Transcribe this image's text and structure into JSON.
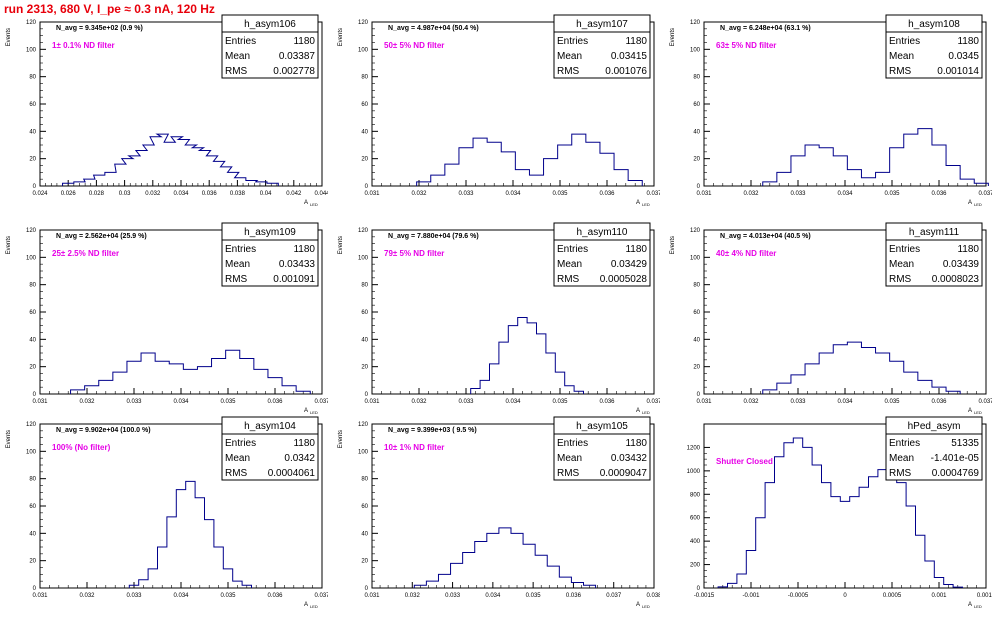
{
  "page": {
    "title": "run 2313,   680 V, I_pe ≈ 0.3 nA, 120 Hz"
  },
  "chart_data": [
    {
      "type": "bar",
      "hist_name": "h_asym106",
      "navg": "N_avg = 9.345e+02 (0.9 %)",
      "annotation": "1± 0.1% ND filter",
      "stats": {
        "entries": "1180",
        "mean": "0.03387",
        "rms": "0.002778"
      },
      "stat_labels": [
        "Entries",
        "Mean",
        "RMS"
      ],
      "ylabel": "Events",
      "xlabel": "A",
      "xlabel_sub": "LED",
      "xlim": [
        0.024,
        0.044
      ],
      "ylim": [
        0,
        120
      ],
      "xticks": [
        "0.024",
        "0.026",
        "0.028",
        "0.03",
        "0.032",
        "0.034",
        "0.036",
        "0.038",
        "0.04",
        "0.042",
        "0.044"
      ],
      "xtick_values": [
        0.024,
        0.026,
        0.028,
        0.03,
        0.032,
        0.034,
        0.036,
        0.038,
        0.04,
        0.042,
        0.044
      ],
      "yticks": [
        0,
        20,
        40,
        60,
        80,
        100,
        120
      ],
      "x": [
        0.026,
        0.0268,
        0.0275,
        0.0282,
        0.029,
        0.0297,
        0.0302,
        0.0307,
        0.0312,
        0.0317,
        0.0322,
        0.0327,
        0.0332,
        0.0337,
        0.0342,
        0.0347,
        0.0352,
        0.0357,
        0.0362,
        0.0367,
        0.0372,
        0.0377,
        0.0382,
        0.039,
        0.0397,
        0.0405
      ],
      "values": [
        2,
        3,
        5,
        8,
        10,
        16,
        20,
        22,
        26,
        30,
        36,
        38,
        32,
        36,
        34,
        30,
        28,
        26,
        22,
        18,
        14,
        10,
        6,
        4,
        3,
        2
      ]
    },
    {
      "type": "bar",
      "hist_name": "h_asym107",
      "navg": "N_avg = 4.987e+04 (50.4 %)",
      "annotation": "50± 5% ND filter",
      "stats": {
        "entries": "1180",
        "mean": "0.03415",
        "rms": "0.001076"
      },
      "stat_labels": [
        "Entries",
        "Mean",
        "RMS"
      ],
      "ylabel": "Events",
      "xlabel": "A",
      "xlabel_sub": "LED",
      "xlim": [
        0.031,
        0.037
      ],
      "ylim": [
        0,
        120
      ],
      "xticks": [
        "0.031",
        "0.032",
        "0.033",
        "0.034",
        "0.035",
        "0.036",
        "0.037"
      ],
      "xtick_values": [
        0.031,
        0.032,
        0.033,
        0.034,
        0.035,
        0.036,
        0.037
      ],
      "yticks": [
        0,
        20,
        40,
        60,
        80,
        100,
        120
      ],
      "x": [
        0.0321,
        0.0324,
        0.0327,
        0.033,
        0.0333,
        0.0336,
        0.0339,
        0.0342,
        0.0345,
        0.0348,
        0.0351,
        0.0354,
        0.0357,
        0.036,
        0.0363,
        0.0366
      ],
      "values": [
        3,
        8,
        16,
        28,
        35,
        32,
        25,
        12,
        8,
        20,
        30,
        38,
        32,
        24,
        12,
        4
      ]
    },
    {
      "type": "bar",
      "hist_name": "h_asym108",
      "navg": "N_avg = 6.248e+04 (63.1 %)",
      "annotation": "63± 5% ND filter",
      "stats": {
        "entries": "1180",
        "mean": "0.0345",
        "rms": "0.001014"
      },
      "stat_labels": [
        "Entries",
        "Mean",
        "RMS"
      ],
      "ylabel": "Events",
      "xlabel": "A",
      "xlabel_sub": "LED",
      "xlim": [
        0.031,
        0.037
      ],
      "ylim": [
        0,
        120
      ],
      "xticks": [
        "0.031",
        "0.032",
        "0.033",
        "0.034",
        "0.035",
        "0.036",
        "0.037"
      ],
      "xtick_values": [
        0.031,
        0.032,
        0.033,
        0.034,
        0.035,
        0.036,
        0.037
      ],
      "yticks": [
        0,
        20,
        40,
        60,
        80,
        100,
        120
      ],
      "x": [
        0.0324,
        0.0327,
        0.033,
        0.0333,
        0.0336,
        0.0339,
        0.0342,
        0.0345,
        0.0348,
        0.0351,
        0.0354,
        0.0357,
        0.036,
        0.0363,
        0.0366,
        0.0369
      ],
      "values": [
        3,
        10,
        22,
        30,
        28,
        22,
        12,
        6,
        10,
        28,
        38,
        42,
        30,
        15,
        5,
        2
      ]
    },
    {
      "type": "bar",
      "hist_name": "h_asym109",
      "navg": "N_avg = 2.562e+04 (25.9 %)",
      "annotation": "25± 2.5% ND filter",
      "stats": {
        "entries": "1180",
        "mean": "0.03433",
        "rms": "0.001091"
      },
      "stat_labels": [
        "Entries",
        "Mean",
        "RMS"
      ],
      "ylabel": "Events",
      "xlabel": "A",
      "xlabel_sub": "LED",
      "xlim": [
        0.031,
        0.037
      ],
      "ylim": [
        0,
        120
      ],
      "xticks": [
        "0.031",
        "0.032",
        "0.033",
        "0.034",
        "0.035",
        "0.036",
        "0.037"
      ],
      "xtick_values": [
        0.031,
        0.032,
        0.033,
        0.034,
        0.035,
        0.036,
        0.037
      ],
      "yticks": [
        0,
        20,
        40,
        60,
        80,
        100,
        120
      ],
      "x": [
        0.0318,
        0.0321,
        0.0324,
        0.0327,
        0.033,
        0.0333,
        0.0336,
        0.0339,
        0.0342,
        0.0345,
        0.0348,
        0.0351,
        0.0354,
        0.0357,
        0.036,
        0.0363,
        0.0366
      ],
      "values": [
        3,
        6,
        10,
        16,
        24,
        30,
        24,
        22,
        18,
        20,
        26,
        32,
        26,
        18,
        12,
        6,
        2
      ]
    },
    {
      "type": "bar",
      "hist_name": "h_asym110",
      "navg": "N_avg = 7.880e+04 (79.6 %)",
      "annotation": "79± 5% ND filter",
      "stats": {
        "entries": "1180",
        "mean": "0.03429",
        "rms": "0.0005028"
      },
      "stat_labels": [
        "Entries",
        "Mean",
        "RMS"
      ],
      "ylabel": "Events",
      "xlabel": "A",
      "xlabel_sub": "LED",
      "xlim": [
        0.031,
        0.037
      ],
      "ylim": [
        0,
        120
      ],
      "xticks": [
        "0.031",
        "0.032",
        "0.033",
        "0.034",
        "0.035",
        "0.036",
        "0.037"
      ],
      "xtick_values": [
        0.031,
        0.032,
        0.033,
        0.034,
        0.035,
        0.036,
        0.037
      ],
      "yticks": [
        0,
        20,
        40,
        60,
        80,
        100,
        120
      ],
      "x": [
        0.0332,
        0.0334,
        0.0336,
        0.0338,
        0.034,
        0.0342,
        0.0344,
        0.0346,
        0.0348,
        0.035,
        0.0352,
        0.0354
      ],
      "values": [
        4,
        10,
        22,
        38,
        50,
        56,
        52,
        44,
        30,
        16,
        6,
        2
      ]
    },
    {
      "type": "bar",
      "hist_name": "h_asym111",
      "navg": "N_avg = 4.013e+04 (40.5 %)",
      "annotation": "40± 4% ND filter",
      "stats": {
        "entries": "1180",
        "mean": "0.03439",
        "rms": "0.0008023"
      },
      "stat_labels": [
        "Entries",
        "Mean",
        "RMS"
      ],
      "ylabel": "Events",
      "xlabel": "A",
      "xlabel_sub": "LED",
      "xlim": [
        0.031,
        0.037
      ],
      "ylim": [
        0,
        120
      ],
      "xticks": [
        "0.031",
        "0.032",
        "0.033",
        "0.034",
        "0.035",
        "0.036",
        "0.037"
      ],
      "xtick_values": [
        0.031,
        0.032,
        0.033,
        0.034,
        0.035,
        0.036,
        0.037
      ],
      "yticks": [
        0,
        20,
        40,
        60,
        80,
        100,
        120
      ],
      "x": [
        0.0324,
        0.0327,
        0.033,
        0.0333,
        0.0336,
        0.0339,
        0.0342,
        0.0345,
        0.0348,
        0.0351,
        0.0354,
        0.0357,
        0.036,
        0.0363
      ],
      "values": [
        3,
        8,
        14,
        22,
        30,
        36,
        38,
        34,
        30,
        24,
        16,
        10,
        5,
        2
      ]
    },
    {
      "type": "bar",
      "hist_name": "h_asym104",
      "navg": "N_avg = 9.902e+04 (100.0 %)",
      "annotation": "100% (No filter)",
      "stats": {
        "entries": "1180",
        "mean": "0.0342",
        "rms": "0.0004061"
      },
      "stat_labels": [
        "Entries",
        "Mean",
        "RMS"
      ],
      "ylabel": "Events",
      "xlabel": "A",
      "xlabel_sub": "LED",
      "xlim": [
        0.031,
        0.037
      ],
      "ylim": [
        0,
        120
      ],
      "xticks": [
        "0.031",
        "0.032",
        "0.033",
        "0.034",
        "0.035",
        "0.036",
        "0.037"
      ],
      "xtick_values": [
        0.031,
        0.032,
        0.033,
        0.034,
        0.035,
        0.036,
        0.037
      ],
      "yticks": [
        0,
        20,
        40,
        60,
        80,
        100,
        120
      ],
      "x": [
        0.033,
        0.0332,
        0.0334,
        0.0336,
        0.0338,
        0.034,
        0.0342,
        0.0344,
        0.0346,
        0.0348,
        0.035,
        0.0352,
        0.0354
      ],
      "values": [
        2,
        6,
        14,
        30,
        52,
        72,
        78,
        66,
        50,
        30,
        14,
        5,
        2
      ]
    },
    {
      "type": "bar",
      "hist_name": "h_asym105",
      "navg": "N_avg = 9.399e+03 ( 9.5 %)",
      "annotation": "10± 1% ND filter",
      "stats": {
        "entries": "1180",
        "mean": "0.03432",
        "rms": "0.0009047"
      },
      "stat_labels": [
        "Entries",
        "Mean",
        "RMS"
      ],
      "ylabel": "Events",
      "xlabel": "A",
      "xlabel_sub": "LED",
      "xlim": [
        0.031,
        0.038
      ],
      "ylim": [
        0,
        120
      ],
      "xticks": [
        "0.031",
        "0.032",
        "0.033",
        "0.034",
        "0.035",
        "0.036",
        "0.037",
        "0.038"
      ],
      "xtick_values": [
        0.031,
        0.032,
        0.033,
        0.034,
        0.035,
        0.036,
        0.037,
        0.038
      ],
      "yticks": [
        0,
        20,
        40,
        60,
        80,
        100,
        120
      ],
      "x": [
        0.0322,
        0.0325,
        0.0328,
        0.0331,
        0.0334,
        0.0337,
        0.034,
        0.0343,
        0.0346,
        0.0349,
        0.0352,
        0.0355,
        0.0358,
        0.0361,
        0.0364
      ],
      "values": [
        2,
        5,
        10,
        18,
        26,
        34,
        40,
        44,
        40,
        32,
        24,
        16,
        8,
        4,
        2
      ]
    },
    {
      "type": "bar",
      "hist_name": "hPed_asym",
      "navg": "",
      "annotation": "Shutter Closed",
      "stats": {
        "entries": "51335",
        "mean": "-1.401e-05",
        "rms": "0.0004769"
      },
      "stat_labels": [
        "Entries",
        "Mean",
        "RMS"
      ],
      "ylabel": "",
      "xlabel": "A",
      "xlabel_sub": "LED",
      "xlim": [
        -0.0015,
        0.0015
      ],
      "ylim": [
        0,
        1400
      ],
      "xticks": [
        "-0.0015",
        "-0.001",
        "-0.0005",
        "0",
        "0.0005",
        "0.001",
        "0.0015"
      ],
      "xtick_values": [
        -0.0015,
        -0.001,
        -0.0005,
        0,
        0.0005,
        0.001,
        0.0015
      ],
      "yticks": [
        0,
        200,
        400,
        600,
        800,
        1000,
        1200
      ],
      "x": [
        -0.0013,
        -0.0012,
        -0.0011,
        -0.001,
        -0.0009,
        -0.0008,
        -0.0007,
        -0.0006,
        -0.0005,
        -0.0004,
        -0.0003,
        -0.0002,
        -0.0001,
        0.0,
        0.0001,
        0.0002,
        0.0003,
        0.0004,
        0.0005,
        0.0006,
        0.0007,
        0.0008,
        0.0009,
        0.001,
        0.0011,
        0.0012
      ],
      "values": [
        10,
        40,
        120,
        320,
        600,
        900,
        1120,
        1240,
        1280,
        1200,
        1050,
        900,
        780,
        740,
        780,
        860,
        950,
        1010,
        1000,
        900,
        700,
        450,
        230,
        90,
        30,
        8
      ]
    }
  ]
}
